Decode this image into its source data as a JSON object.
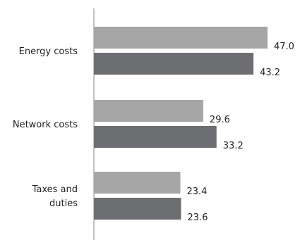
{
  "chart_data": {
    "type": "bar",
    "orientation": "horizontal",
    "categories": [
      "Energy costs",
      "Network costs",
      "Taxes and duties"
    ],
    "category_lines": [
      [
        "Energy costs"
      ],
      [
        "Network costs"
      ],
      [
        "Taxes and",
        "duties"
      ]
    ],
    "series": [
      {
        "values": [
          47.0,
          29.6,
          23.4
        ],
        "color": "#a6a6a6"
      },
      {
        "values": [
          43.2,
          33.2,
          23.6
        ],
        "color": "#6d6e71"
      }
    ],
    "value_labels": [
      [
        "47.0",
        "29.6",
        "23.4"
      ],
      [
        "43.2",
        "33.2",
        "23.6"
      ]
    ],
    "xlim": [
      0,
      50
    ],
    "grid": false,
    "legend": "none"
  }
}
